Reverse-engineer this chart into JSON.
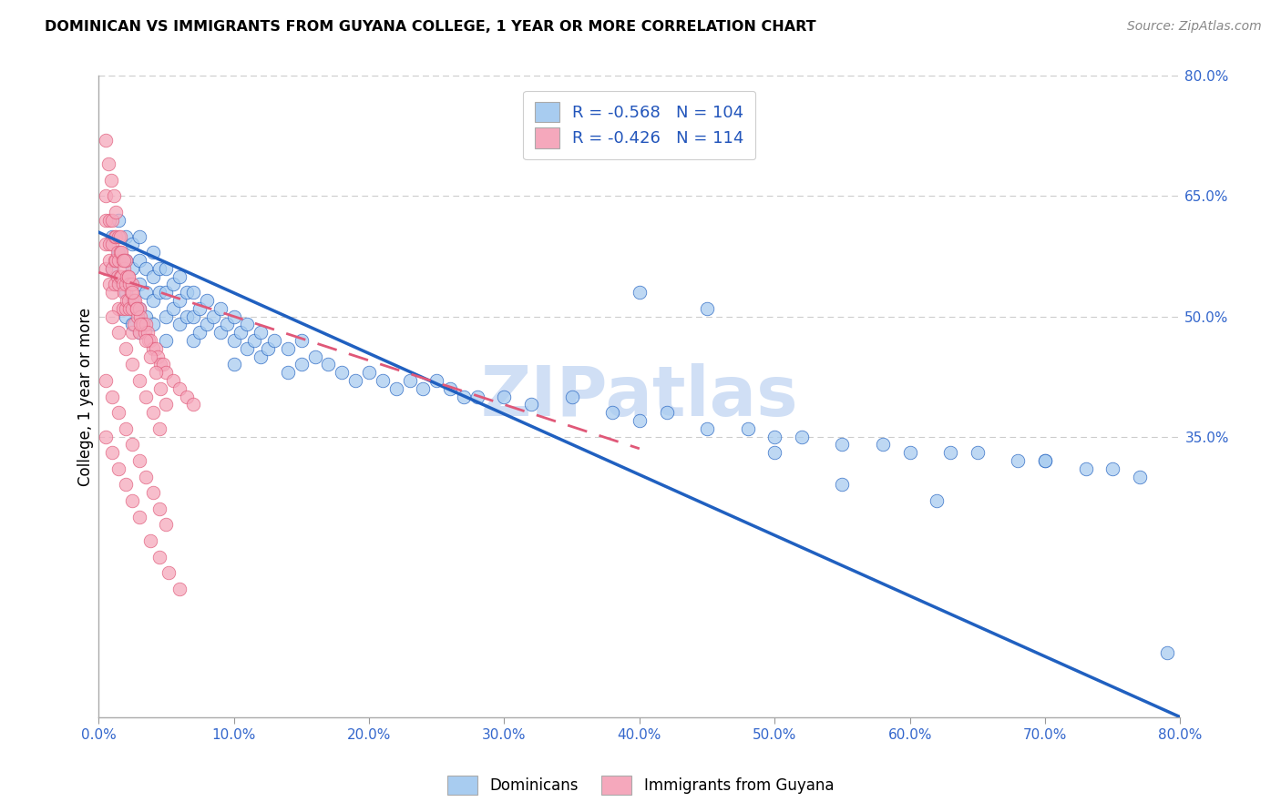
{
  "title": "DOMINICAN VS IMMIGRANTS FROM GUYANA COLLEGE, 1 YEAR OR MORE CORRELATION CHART",
  "source": "Source: ZipAtlas.com",
  "ylabel": "College, 1 year or more",
  "xlim": [
    0.0,
    0.8
  ],
  "ylim": [
    0.0,
    0.8
  ],
  "xticks": [
    0.0,
    0.1,
    0.2,
    0.3,
    0.4,
    0.5,
    0.6,
    0.7,
    0.8
  ],
  "yticks_right": [
    0.35,
    0.5,
    0.65,
    0.8
  ],
  "R_dominican": -0.568,
  "N_dominican": 104,
  "R_guyana": -0.426,
  "N_guyana": 114,
  "color_dominican": "#A8CCF0",
  "color_guyana": "#F5A8BC",
  "line_color_dominican": "#2060C0",
  "line_color_guyana": "#E05878",
  "watermark": "ZIPatlas",
  "watermark_color": "#D0DFF5",
  "legend_R_color": "#2255BB",
  "tick_color": "#3366CC",
  "dominican_line_start_y": 0.605,
  "dominican_line_end_y": 0.0,
  "guyana_line_start_y": 0.555,
  "guyana_line_end_y": 0.335,
  "guyana_line_end_x": 0.4,
  "dom_x": [
    0.01,
    0.01,
    0.015,
    0.015,
    0.015,
    0.02,
    0.02,
    0.02,
    0.02,
    0.025,
    0.025,
    0.025,
    0.025,
    0.03,
    0.03,
    0.03,
    0.03,
    0.03,
    0.035,
    0.035,
    0.035,
    0.04,
    0.04,
    0.04,
    0.04,
    0.045,
    0.045,
    0.05,
    0.05,
    0.05,
    0.05,
    0.055,
    0.055,
    0.06,
    0.06,
    0.06,
    0.065,
    0.065,
    0.07,
    0.07,
    0.07,
    0.075,
    0.075,
    0.08,
    0.08,
    0.085,
    0.09,
    0.09,
    0.095,
    0.1,
    0.1,
    0.1,
    0.105,
    0.11,
    0.11,
    0.115,
    0.12,
    0.12,
    0.125,
    0.13,
    0.14,
    0.14,
    0.15,
    0.15,
    0.16,
    0.17,
    0.18,
    0.19,
    0.2,
    0.21,
    0.22,
    0.23,
    0.24,
    0.25,
    0.26,
    0.27,
    0.28,
    0.3,
    0.32,
    0.35,
    0.38,
    0.4,
    0.42,
    0.45,
    0.48,
    0.5,
    0.52,
    0.55,
    0.58,
    0.6,
    0.63,
    0.65,
    0.68,
    0.7,
    0.73,
    0.75,
    0.77,
    0.79,
    0.4,
    0.45,
    0.5,
    0.55,
    0.62,
    0.7
  ],
  "dom_y": [
    0.6,
    0.56,
    0.62,
    0.58,
    0.54,
    0.6,
    0.57,
    0.53,
    0.5,
    0.59,
    0.56,
    0.52,
    0.49,
    0.6,
    0.57,
    0.54,
    0.51,
    0.48,
    0.56,
    0.53,
    0.5,
    0.58,
    0.55,
    0.52,
    0.49,
    0.56,
    0.53,
    0.56,
    0.53,
    0.5,
    0.47,
    0.54,
    0.51,
    0.55,
    0.52,
    0.49,
    0.53,
    0.5,
    0.53,
    0.5,
    0.47,
    0.51,
    0.48,
    0.52,
    0.49,
    0.5,
    0.51,
    0.48,
    0.49,
    0.5,
    0.47,
    0.44,
    0.48,
    0.49,
    0.46,
    0.47,
    0.48,
    0.45,
    0.46,
    0.47,
    0.46,
    0.43,
    0.47,
    0.44,
    0.45,
    0.44,
    0.43,
    0.42,
    0.43,
    0.42,
    0.41,
    0.42,
    0.41,
    0.42,
    0.41,
    0.4,
    0.4,
    0.4,
    0.39,
    0.4,
    0.38,
    0.37,
    0.38,
    0.36,
    0.36,
    0.35,
    0.35,
    0.34,
    0.34,
    0.33,
    0.33,
    0.33,
    0.32,
    0.32,
    0.31,
    0.31,
    0.3,
    0.08,
    0.53,
    0.51,
    0.33,
    0.29,
    0.27,
    0.32
  ],
  "guy_x": [
    0.005,
    0.005,
    0.005,
    0.005,
    0.008,
    0.008,
    0.008,
    0.008,
    0.01,
    0.01,
    0.01,
    0.01,
    0.012,
    0.012,
    0.012,
    0.013,
    0.013,
    0.014,
    0.014,
    0.015,
    0.015,
    0.015,
    0.015,
    0.016,
    0.016,
    0.017,
    0.017,
    0.018,
    0.018,
    0.018,
    0.019,
    0.019,
    0.02,
    0.02,
    0.02,
    0.021,
    0.021,
    0.022,
    0.022,
    0.023,
    0.023,
    0.024,
    0.025,
    0.025,
    0.025,
    0.026,
    0.026,
    0.027,
    0.028,
    0.029,
    0.03,
    0.03,
    0.031,
    0.032,
    0.033,
    0.034,
    0.035,
    0.036,
    0.037,
    0.038,
    0.04,
    0.042,
    0.044,
    0.046,
    0.048,
    0.05,
    0.005,
    0.007,
    0.009,
    0.011,
    0.013,
    0.016,
    0.019,
    0.022,
    0.025,
    0.028,
    0.031,
    0.035,
    0.038,
    0.042,
    0.046,
    0.05,
    0.055,
    0.06,
    0.065,
    0.07,
    0.01,
    0.015,
    0.02,
    0.025,
    0.03,
    0.035,
    0.04,
    0.045,
    0.005,
    0.01,
    0.015,
    0.02,
    0.025,
    0.03,
    0.035,
    0.04,
    0.045,
    0.05,
    0.005,
    0.01,
    0.015,
    0.02,
    0.025,
    0.03,
    0.038,
    0.045,
    0.052,
    0.06
  ],
  "guy_y": [
    0.65,
    0.62,
    0.59,
    0.56,
    0.62,
    0.59,
    0.57,
    0.54,
    0.62,
    0.59,
    0.56,
    0.53,
    0.6,
    0.57,
    0.54,
    0.6,
    0.57,
    0.58,
    0.55,
    0.6,
    0.57,
    0.54,
    0.51,
    0.58,
    0.55,
    0.58,
    0.55,
    0.57,
    0.54,
    0.51,
    0.56,
    0.53,
    0.57,
    0.54,
    0.51,
    0.55,
    0.52,
    0.55,
    0.52,
    0.54,
    0.51,
    0.53,
    0.54,
    0.51,
    0.48,
    0.52,
    0.49,
    0.52,
    0.51,
    0.5,
    0.51,
    0.48,
    0.5,
    0.49,
    0.49,
    0.48,
    0.49,
    0.48,
    0.47,
    0.47,
    0.46,
    0.46,
    0.45,
    0.44,
    0.44,
    0.43,
    0.72,
    0.69,
    0.67,
    0.65,
    0.63,
    0.6,
    0.57,
    0.55,
    0.53,
    0.51,
    0.49,
    0.47,
    0.45,
    0.43,
    0.41,
    0.39,
    0.42,
    0.41,
    0.4,
    0.39,
    0.5,
    0.48,
    0.46,
    0.44,
    0.42,
    0.4,
    0.38,
    0.36,
    0.42,
    0.4,
    0.38,
    0.36,
    0.34,
    0.32,
    0.3,
    0.28,
    0.26,
    0.24,
    0.35,
    0.33,
    0.31,
    0.29,
    0.27,
    0.25,
    0.22,
    0.2,
    0.18,
    0.16
  ]
}
